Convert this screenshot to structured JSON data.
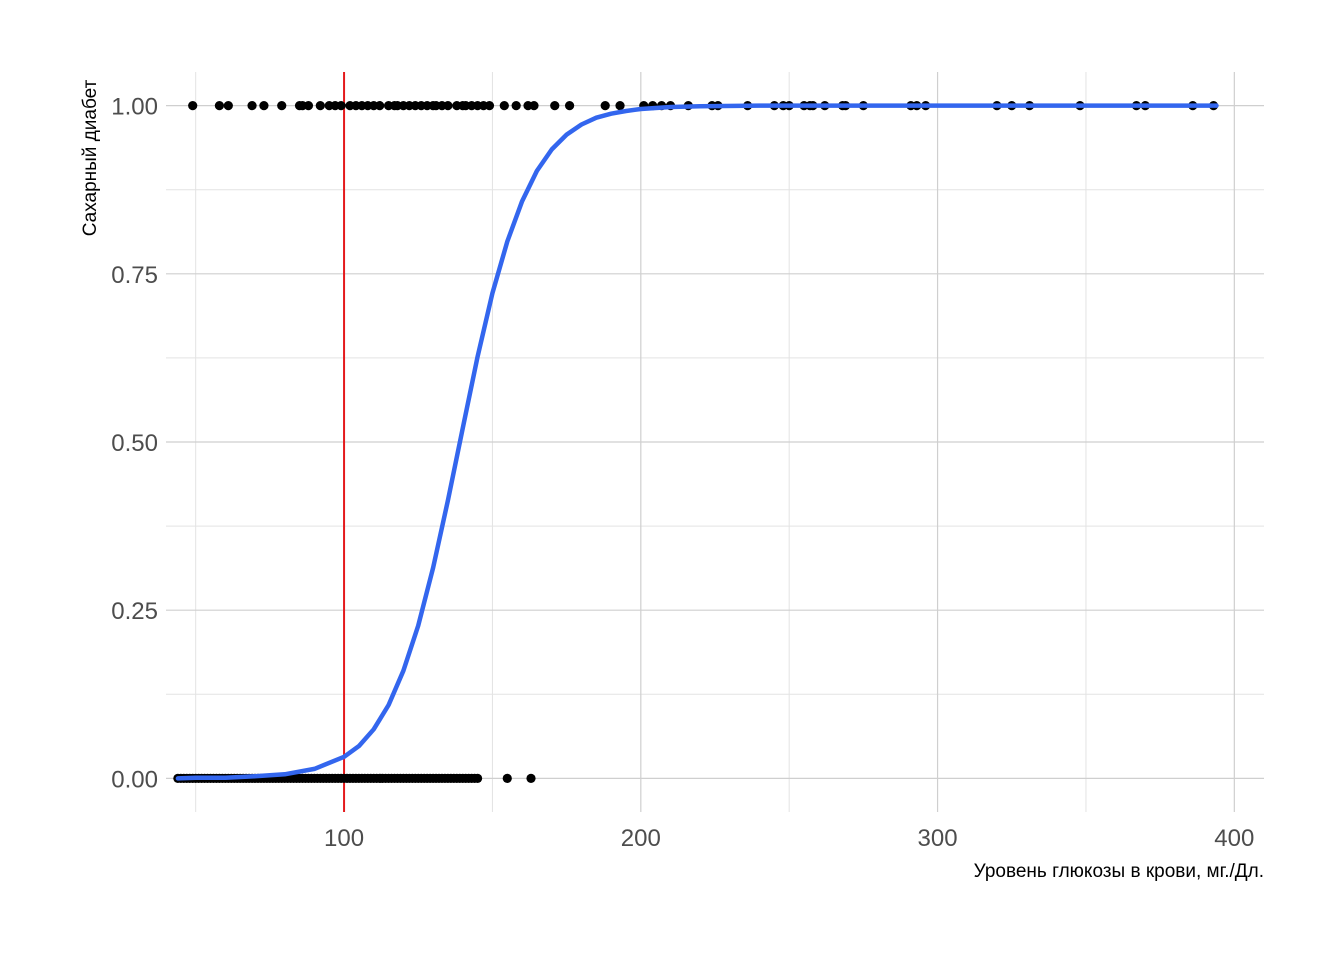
{
  "chart_data": {
    "type": "scatter",
    "xlabel": "Уровень глюкозы в крови, мг./Дл.",
    "ylabel": "Сахарный диабет",
    "xlim": [
      40,
      410
    ],
    "ylim": [
      -0.05,
      1.05
    ],
    "x_ticks": [
      100,
      200,
      300,
      400
    ],
    "x_tick_labels": [
      "100",
      "200",
      "300",
      "400"
    ],
    "y_ticks": [
      0,
      0.25,
      0.5,
      0.75,
      1
    ],
    "y_tick_labels": [
      "0.00",
      "0.25",
      "0.50",
      "0.75",
      "1.00"
    ],
    "grid": true,
    "legend": "none",
    "reference_line": {
      "x": 100,
      "color": "#e41a1c"
    },
    "series": [
      {
        "type": "scatter",
        "color": "#000000",
        "points_y0": [
          44,
          45,
          46,
          47,
          48,
          49,
          50,
          51,
          52,
          53,
          54,
          55,
          56,
          57,
          58,
          59,
          60,
          61,
          62,
          63,
          64,
          65,
          66,
          67,
          68,
          69,
          70,
          71,
          72,
          73,
          74,
          75,
          76,
          77,
          78,
          79,
          80,
          81,
          82,
          83,
          84,
          85,
          86,
          87,
          88,
          89,
          90,
          91,
          92,
          93,
          94,
          95,
          96,
          97,
          98,
          99,
          100,
          101,
          102,
          103,
          104,
          105,
          106,
          107,
          108,
          109,
          110,
          111,
          112,
          113,
          114,
          115,
          116,
          117,
          118,
          119,
          120,
          121,
          122,
          123,
          124,
          125,
          126,
          127,
          128,
          129,
          130,
          131,
          132,
          133,
          134,
          135,
          136,
          137,
          138,
          139,
          140,
          141,
          142,
          143,
          144,
          145,
          155,
          163
        ],
        "points_y1": [
          49,
          58,
          61,
          69,
          73,
          79,
          85,
          86,
          88,
          92,
          95,
          97,
          99,
          102,
          104,
          106,
          108,
          110,
          112,
          115,
          117,
          118,
          120,
          122,
          124,
          126,
          128,
          130,
          131,
          133,
          135,
          138,
          140,
          141,
          143,
          145,
          147,
          149,
          154,
          158,
          162,
          164,
          171,
          176,
          188,
          193,
          201,
          204,
          207,
          210,
          216,
          224,
          226,
          236,
          245,
          248,
          250,
          255,
          257,
          258,
          262,
          268,
          269,
          275,
          291,
          293,
          296,
          320,
          325,
          331,
          348,
          367,
          370,
          386,
          393
        ]
      },
      {
        "type": "line",
        "color": "#3366ee",
        "model": "logistic",
        "x": [
          44,
          50,
          60,
          70,
          80,
          90,
          100,
          105,
          110,
          115,
          120,
          125,
          130,
          135,
          140,
          145,
          150,
          155,
          160,
          165,
          170,
          175,
          180,
          185,
          190,
          195,
          200,
          210,
          220,
          240,
          260,
          300,
          350,
          394
        ],
        "y": [
          0.0,
          0.001,
          0.001,
          0.003,
          0.006,
          0.014,
          0.032,
          0.048,
          0.073,
          0.109,
          0.16,
          0.227,
          0.313,
          0.413,
          0.521,
          0.627,
          0.721,
          0.798,
          0.858,
          0.903,
          0.935,
          0.957,
          0.972,
          0.982,
          0.988,
          0.992,
          0.995,
          0.998,
          0.999,
          1.0,
          1.0,
          1.0,
          1.0,
          1.0
        ]
      }
    ]
  }
}
